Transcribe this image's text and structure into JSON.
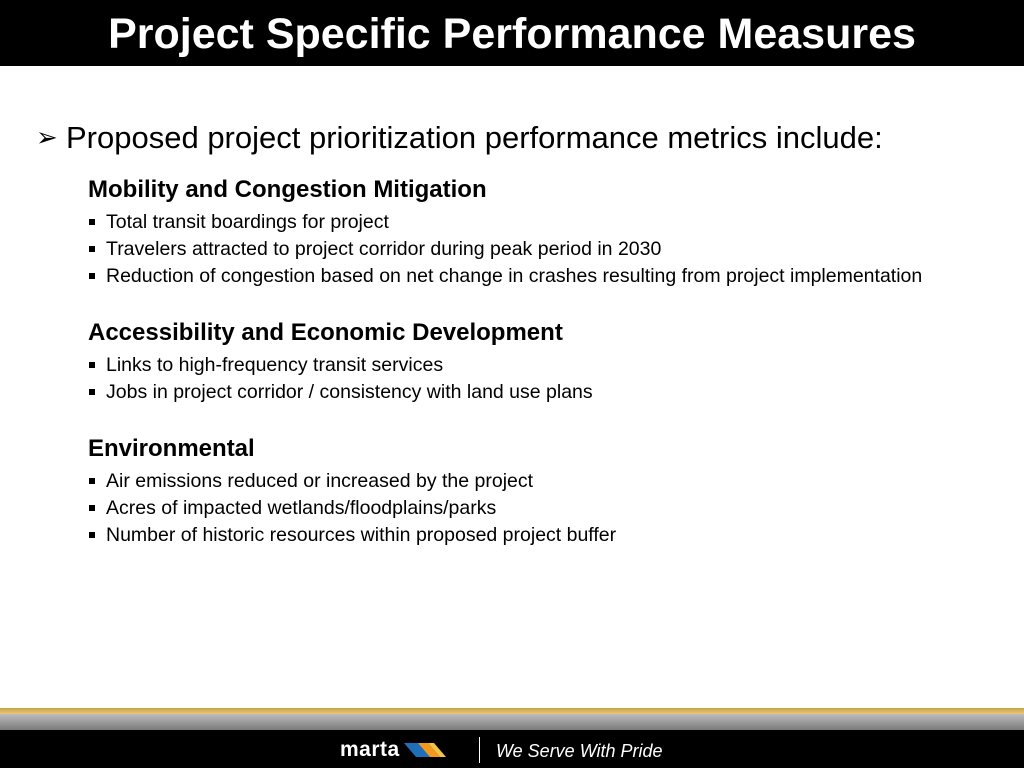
{
  "slide": {
    "title": "Project Specific Performance Measures",
    "lead": {
      "marker_icon": "arrow-bullet-icon",
      "text": "Proposed project prioritization performance metrics include:"
    },
    "sections": [
      {
        "heading": "Mobility and Congestion Mitigation",
        "items": [
          "Total transit boardings for project",
          "Travelers attracted to project corridor during peak period in 2030",
          "Reduction of congestion based on net change in crashes resulting from project implementation"
        ]
      },
      {
        "heading": "Accessibility and Economic Development",
        "items": [
          "Links to high-frequency transit services",
          "Jobs in project corridor / consistency with land use plans"
        ]
      },
      {
        "heading": "Environmental",
        "items": [
          "Air emissions reduced or increased by the project",
          "Acres of impacted wetlands/floodplains/parks",
          "Number of historic resources within proposed project buffer"
        ]
      }
    ]
  },
  "footer": {
    "logo_text": "marta",
    "tagline": "We Serve With Pride"
  },
  "colors": {
    "title_bar": "#000000",
    "title_text": "#ffffff",
    "body_text": "#000000",
    "stripe_gold": "#e8c778",
    "stripe_grey": "#9a9a9a",
    "footer_bg": "#000000",
    "logo_mark_blue": "#1e6fb8",
    "logo_mark_orange": "#f29a1f"
  }
}
